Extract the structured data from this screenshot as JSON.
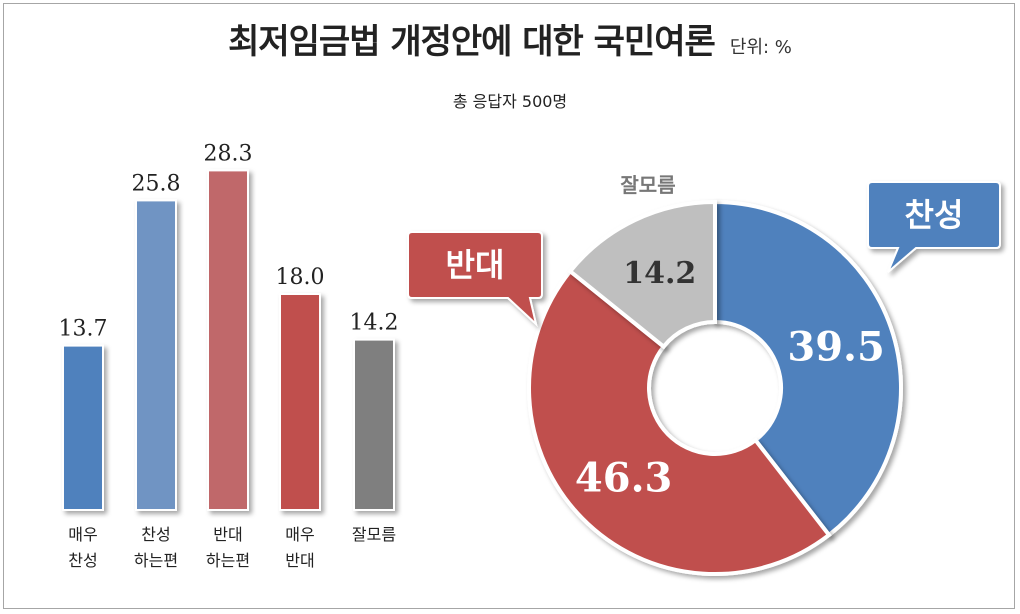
{
  "header": {
    "title": "최저임금법 개정안에 대한 국민여론",
    "unit": "단위: %",
    "subtitle": "총 응답자 500명"
  },
  "chart_data": [
    {
      "type": "bar",
      "categories": [
        [
          "매우",
          "찬성"
        ],
        [
          "찬성",
          "하는편"
        ],
        [
          "반대",
          "하는편"
        ],
        [
          "매우",
          "반대"
        ],
        [
          "잘모름"
        ]
      ],
      "values": [
        13.7,
        25.8,
        28.3,
        18.0,
        14.2
      ],
      "value_labels": [
        "13.7",
        "25.8",
        "28.3",
        "18.0",
        "14.2"
      ],
      "colors": [
        "#4f81bd",
        "#7094c3",
        "#c0686a",
        "#c0504d",
        "#7f7f7f"
      ],
      "ylim": [
        0,
        30
      ],
      "grid": false,
      "legend": "none"
    },
    {
      "type": "pie",
      "donut": true,
      "slices": [
        {
          "label": "찬성",
          "value": 39.5,
          "value_label": "39.5",
          "color": "#4f81bd"
        },
        {
          "label": "반대",
          "value": 46.3,
          "value_label": "46.3",
          "color": "#c0504d"
        },
        {
          "label": "잘모름",
          "value": 14.2,
          "value_label": "14.2",
          "color": "#bfbfbf"
        }
      ],
      "legend": "none"
    }
  ]
}
